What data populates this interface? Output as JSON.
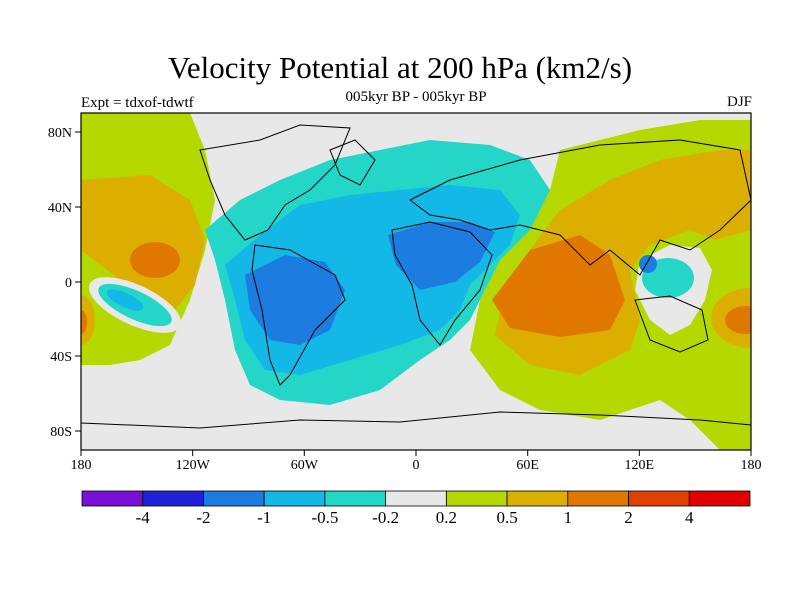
{
  "title": "Velocity Potential at 200 hPa (km2/s)",
  "subtitle": "005kyr BP - 005kyr BP",
  "left_label": "Expt = tdxof-tdwtf",
  "right_label": "DJF",
  "map": {
    "lon_ticks": [
      "180",
      "120W",
      "60W",
      "0",
      "60E",
      "120E",
      "180"
    ],
    "lat_ticks": [
      "80N",
      "40N",
      "0",
      "40S",
      "80S"
    ]
  },
  "colorbar": {
    "colors": [
      "#7a10d8",
      "#2020d8",
      "#1c7ce0",
      "#14b8e6",
      "#24d6c8",
      "#e8e8e8",
      "#b4d800",
      "#dcae00",
      "#e07800",
      "#e04000",
      "#e00000"
    ],
    "labels": [
      "-4",
      "-2",
      "-1",
      "-0.5",
      "-0.2",
      "0.2",
      "0.5",
      "1",
      "2",
      "4"
    ]
  }
}
